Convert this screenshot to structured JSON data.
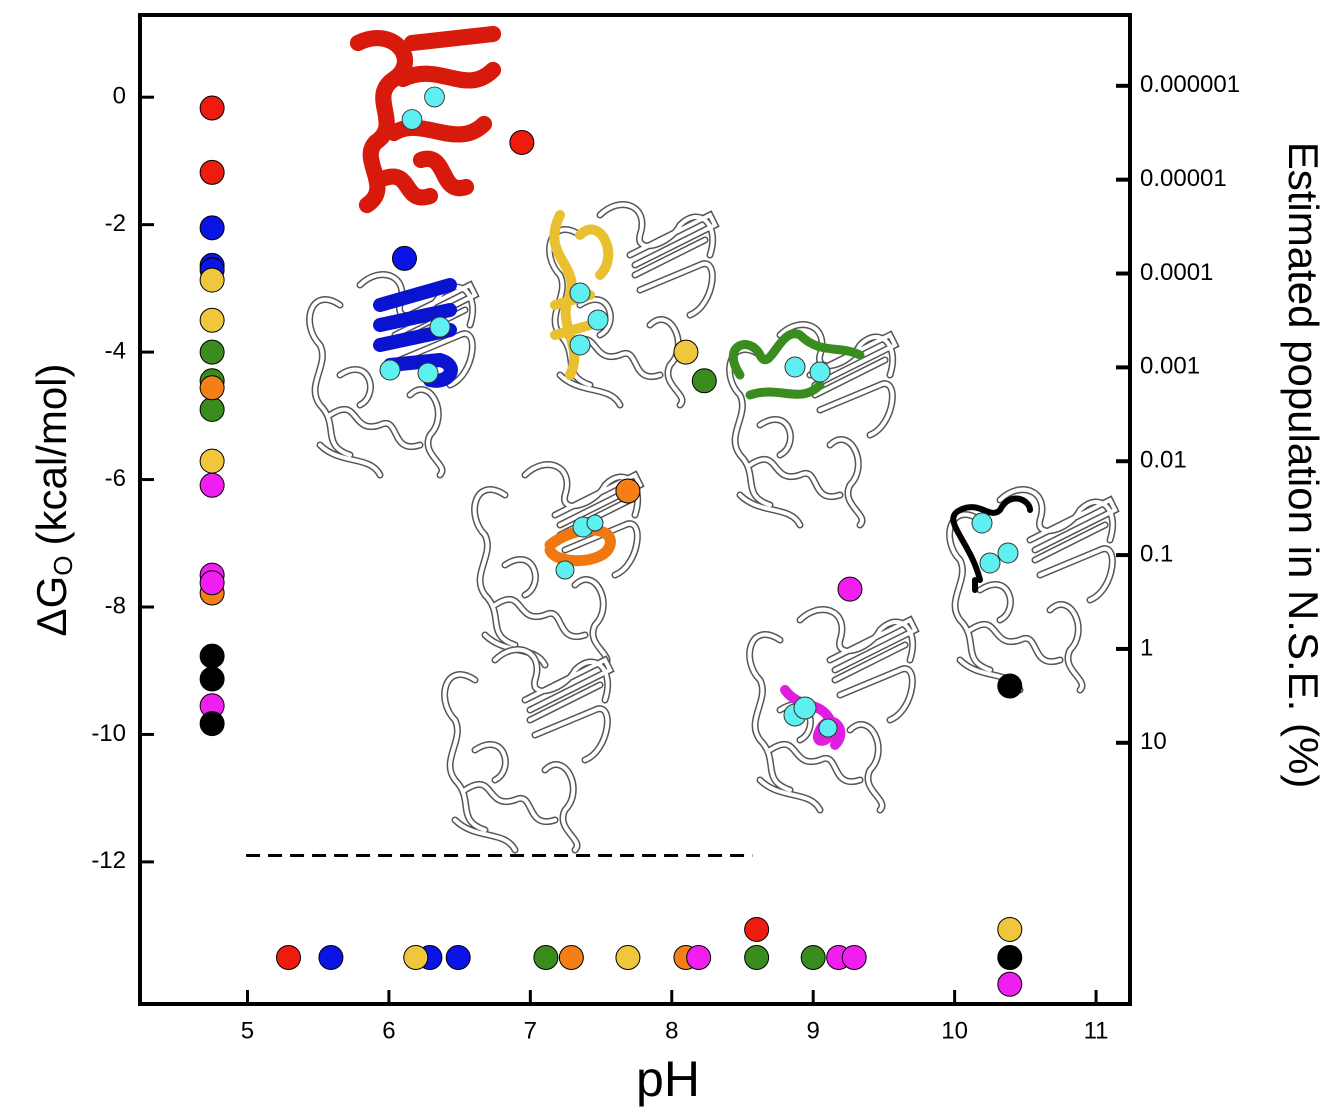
{
  "chart_data": {
    "type": "scatter",
    "xlabel": "pH",
    "ylabel": [
      "ΔG",
      "O",
      "(kcal/mol)"
    ],
    "y2label": "Estimated population in N.S.E. (%)",
    "xlim": [
      4.24,
      11.24
    ],
    "xticks": [
      5,
      6,
      7,
      8,
      9,
      10,
      11
    ],
    "ylim": [
      -14.23,
      1.29
    ],
    "yticks": [
      0,
      -2,
      -4,
      -6,
      -8,
      -10,
      -12
    ],
    "y2lim": [
      1.76e-07,
      6070
    ],
    "y2ticks": [
      1e-06,
      1e-05,
      0.0001,
      0.001,
      0.01,
      0.1,
      1,
      10
    ],
    "y2scale": "log",
    "reference_line": {
      "x": [
        4.99,
        8.57
      ],
      "y": -11.9,
      "style": "dashed"
    },
    "series": [
      {
        "color": "#ee1c0e",
        "x": [
          4.75,
          4.75,
          6.94,
          5.29,
          8.6
        ],
        "values": [
          -0.17,
          -1.18,
          -0.71,
          -13.5,
          -13.06
        ]
      },
      {
        "color": "#0a14e6",
        "x": [
          4.75,
          4.75,
          4.75,
          6.11,
          5.59,
          6.29,
          6.49
        ],
        "values": [
          -2.05,
          -2.64,
          -2.71,
          -2.53,
          -13.5,
          -13.5,
          -13.5
        ]
      },
      {
        "color": "#f0c63c",
        "x": [
          4.75,
          4.75,
          4.75,
          8.1,
          6.19,
          7.69,
          10.39
        ],
        "values": [
          -2.87,
          -3.5,
          -5.71,
          -4.0,
          -13.5,
          -13.5,
          -13.06
        ]
      },
      {
        "color": "#3a8c1e",
        "x": [
          4.75,
          4.75,
          4.75,
          8.23,
          7.11,
          8.6,
          9.0
        ],
        "values": [
          -4.0,
          -4.45,
          -4.9,
          -4.45,
          -13.5,
          -13.5,
          -13.5
        ]
      },
      {
        "color": "#f57f17",
        "x": [
          4.75,
          4.75,
          7.69,
          7.29,
          8.1
        ],
        "values": [
          -4.56,
          -7.78,
          -6.18,
          -13.5,
          -13.5
        ]
      },
      {
        "color": "#f01ff0",
        "x": [
          4.75,
          4.75,
          4.75,
          4.75,
          9.26,
          8.19,
          9.18,
          9.29,
          10.39
        ],
        "values": [
          -6.09,
          -7.5,
          -7.62,
          -9.55,
          -7.72,
          -13.5,
          -13.5,
          -13.5,
          -13.92
        ]
      },
      {
        "color": "#000000",
        "x": [
          4.75,
          4.75,
          4.75,
          10.39,
          10.39
        ],
        "values": [
          -8.77,
          -9.13,
          -9.83,
          -9.24,
          -13.5
        ]
      }
    ]
  }
}
